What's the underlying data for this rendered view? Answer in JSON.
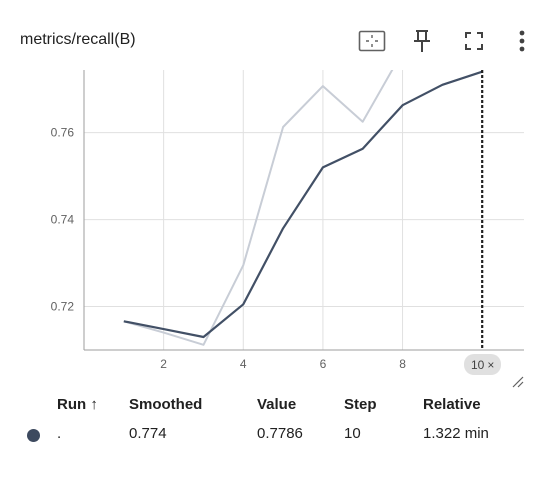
{
  "card": {
    "title": "metrics/recall(B)"
  },
  "toolbar": {
    "icons": [
      "fit-domain-icon",
      "pin-icon",
      "fullscreen-icon",
      "more-vert-icon"
    ]
  },
  "chart_data": {
    "type": "line",
    "title": "metrics/recall(B)",
    "xlabel": "",
    "ylabel": "",
    "x_ticks": [
      "2",
      "4",
      "6",
      "8"
    ],
    "y_ticks": [
      "0.72",
      "0.74",
      "0.76"
    ],
    "xlim": [
      0,
      11.05
    ],
    "ylim": [
      0.71,
      0.7744
    ],
    "grid": true,
    "series": [
      {
        "role": "raw",
        "color": "#c8cdd6",
        "x": [
          1,
          2,
          3,
          4,
          5,
          6,
          7,
          8
        ],
        "y": [
          0.7166,
          0.714,
          0.7112,
          0.7295,
          0.7613,
          0.7707,
          0.7625,
          0.7786
        ]
      },
      {
        "role": "smoothed",
        "color": "#425066",
        "x": [
          1,
          2,
          3,
          4,
          5,
          6,
          7,
          8,
          9,
          10
        ],
        "y": [
          0.7166,
          0.7148,
          0.713,
          0.7205,
          0.738,
          0.752,
          0.7563,
          0.7663,
          0.771,
          0.774
        ]
      }
    ],
    "cursor_step": 10,
    "cursor_label": "10",
    "cursor_close_glyph": "×"
  },
  "table": {
    "headers": {
      "run": "Run ↑",
      "smoothed": "Smoothed",
      "value": "Value",
      "step": "Step",
      "relative": "Relative"
    },
    "rows": [
      {
        "color": "#3d4a5f",
        "run": ".",
        "smoothed": "0.774",
        "value": "0.7786",
        "step": "10",
        "relative": "1.322 min"
      }
    ]
  }
}
